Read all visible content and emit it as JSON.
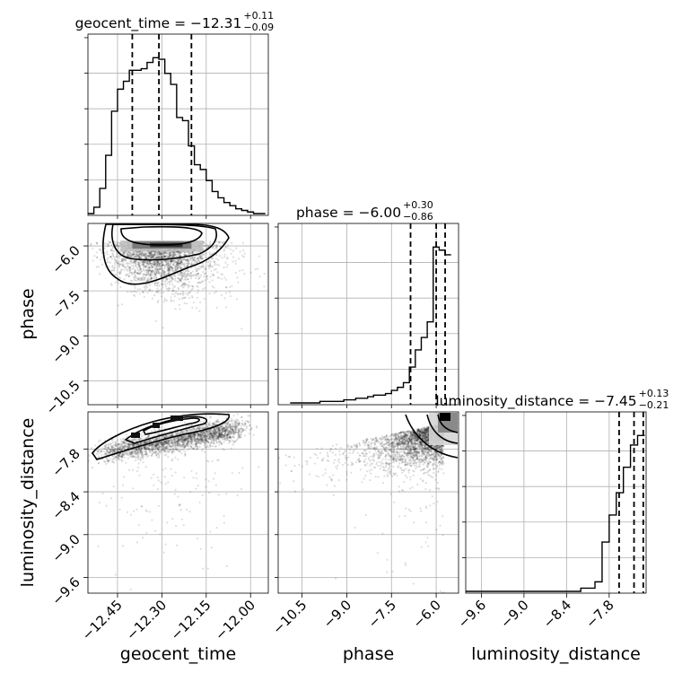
{
  "chart_data": {
    "type": "corner",
    "parameters": [
      "geocent_time",
      "phase",
      "luminosity_distance"
    ],
    "axis_labels": {
      "geocent_time": "geocent_time",
      "phase": "phase",
      "luminosity_distance": "luminosity_distance"
    },
    "ranges": {
      "geocent_time": [
        -12.55,
        -11.94
      ],
      "phase": [
        -11.3,
        -5.25
      ],
      "luminosity_distance": [
        -9.82,
        -7.28
      ]
    },
    "ticks": {
      "geocent_time": [
        "-12.45",
        "-12.30",
        "-12.15",
        "-12.00"
      ],
      "phase": [
        "-10.5",
        "-9.0",
        "-7.5",
        "-6.0"
      ],
      "luminosity_distance": [
        "-9.6",
        "-9.0",
        "-8.4",
        "-7.8"
      ]
    },
    "titles": [
      {
        "param": "geocent_time",
        "text": "geocent_time = −12.31",
        "plus": "+0.11",
        "minus": "−0.09"
      },
      {
        "param": "phase",
        "text": "phase = −6.00",
        "plus": "+0.30",
        "minus": "−0.86"
      },
      {
        "param": "luminosity_distance",
        "text": "luminosity_distance = −7.45",
        "plus": "+0.13",
        "minus": "−0.21"
      }
    ],
    "quantiles": {
      "geocent_time": [
        -12.4,
        -12.31,
        -12.2
      ],
      "phase": [
        -6.86,
        -6.0,
        -5.7
      ],
      "luminosity_distance": [
        -7.66,
        -7.45,
        -7.32
      ]
    },
    "histograms": {
      "geocent_time": {
        "edges": [
          -12.55,
          -12.53,
          -12.51,
          -12.49,
          -12.47,
          -12.45,
          -12.43,
          -12.41,
          -12.39,
          -12.37,
          -12.35,
          -12.33,
          -12.31,
          -12.29,
          -12.27,
          -12.25,
          -12.23,
          -12.21,
          -12.19,
          -12.17,
          -12.15,
          -12.13,
          -12.11,
          -12.09,
          -12.07,
          -12.05,
          -12.03,
          -12.01,
          -11.99,
          -11.97,
          -11.95
        ],
        "counts": [
          0.0,
          0.04,
          0.16,
          0.37,
          0.65,
          0.79,
          0.84,
          0.91,
          0.91,
          0.92,
          0.96,
          0.99,
          0.98,
          0.89,
          0.82,
          0.61,
          0.59,
          0.43,
          0.31,
          0.28,
          0.21,
          0.14,
          0.1,
          0.07,
          0.05,
          0.03,
          0.02,
          0.01,
          0.0,
          0.0
        ]
      },
      "phase": {
        "edges": [
          -10.9,
          -10.7,
          -10.5,
          -10.3,
          -10.1,
          -9.9,
          -9.7,
          -9.5,
          -9.3,
          -9.1,
          -8.9,
          -8.7,
          -8.5,
          -8.3,
          -8.1,
          -7.9,
          -7.7,
          -7.5,
          -7.3,
          -7.1,
          -6.9,
          -6.7,
          -6.5,
          -6.3,
          -6.1,
          -5.9,
          -5.7,
          -5.5
        ],
        "counts": [
          0.0,
          0.0,
          0.0,
          0.0,
          0.0,
          0.01,
          0.01,
          0.01,
          0.01,
          0.02,
          0.02,
          0.03,
          0.03,
          0.04,
          0.05,
          0.05,
          0.06,
          0.08,
          0.1,
          0.13,
          0.23,
          0.34,
          0.42,
          0.52,
          1.0,
          0.98,
          0.95
        ]
      },
      "luminosity_distance": {
        "edges": [
          -9.82,
          -8.2,
          -8.0,
          -7.9,
          -7.8,
          -7.7,
          -7.6,
          -7.5,
          -7.4,
          -7.3
        ],
        "counts": [
          0.0,
          0.02,
          0.06,
          0.31,
          0.48,
          0.62,
          0.78,
          0.92,
          0.98
        ]
      }
    },
    "grid": true
  }
}
